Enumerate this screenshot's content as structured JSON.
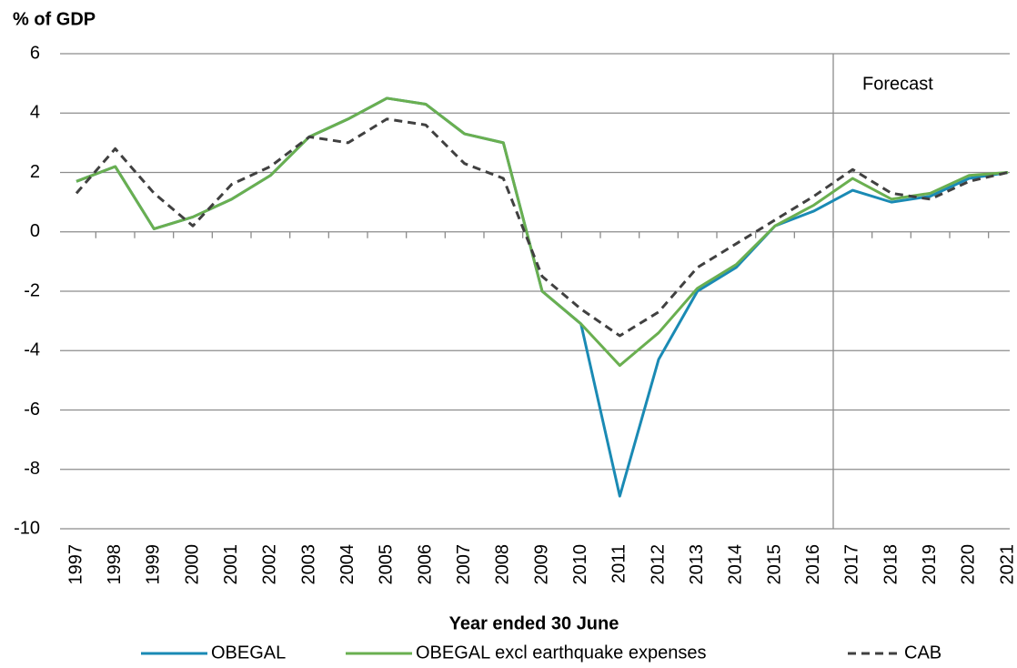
{
  "chart_data": {
    "type": "line",
    "y_label": "% of GDP",
    "x_label": "Year ended 30 June",
    "annotation": "Forecast",
    "categories": [
      "1997",
      "1998",
      "1999",
      "2000",
      "2001",
      "2002",
      "2003",
      "2004",
      "2005",
      "2006",
      "2007",
      "2008",
      "2009",
      "2010",
      "2011",
      "2012",
      "2013",
      "2014",
      "2015",
      "2016",
      "2017",
      "2018",
      "2019",
      "2020",
      "2021"
    ],
    "series": [
      {
        "name": "OBEGAL",
        "color": "#1a8ab4",
        "dash": false,
        "values": [
          1.7,
          2.2,
          0.1,
          0.5,
          1.1,
          1.9,
          3.2,
          3.8,
          4.5,
          4.3,
          3.3,
          3.0,
          -2.0,
          -3.1,
          -8.9,
          -4.3,
          -2.0,
          -1.2,
          0.2,
          0.7,
          1.4,
          1.0,
          1.2,
          1.8,
          2.0
        ]
      },
      {
        "name": "OBEGAL excl earthquake expenses",
        "color": "#6aaf50",
        "dash": false,
        "values": [
          1.7,
          2.2,
          0.1,
          0.5,
          1.1,
          1.9,
          3.2,
          3.8,
          4.5,
          4.3,
          3.3,
          3.0,
          -2.0,
          -3.1,
          -4.5,
          -3.4,
          -1.9,
          -1.1,
          0.2,
          0.9,
          1.8,
          1.1,
          1.3,
          1.9,
          2.0
        ]
      },
      {
        "name": "CAB",
        "color": "#404040",
        "dash": true,
        "values": [
          1.3,
          2.8,
          1.3,
          0.2,
          1.6,
          2.2,
          3.2,
          3.0,
          3.8,
          3.6,
          2.3,
          1.8,
          -1.5,
          -2.6,
          -3.5,
          -2.7,
          -1.2,
          -0.4,
          0.4,
          1.2,
          2.1,
          1.3,
          1.1,
          1.7,
          2.0
        ]
      }
    ],
    "ylim": [
      -10,
      6
    ],
    "yticks": [
      -10,
      -8,
      -6,
      -4,
      -2,
      0,
      2,
      4,
      6
    ],
    "grid": true
  }
}
